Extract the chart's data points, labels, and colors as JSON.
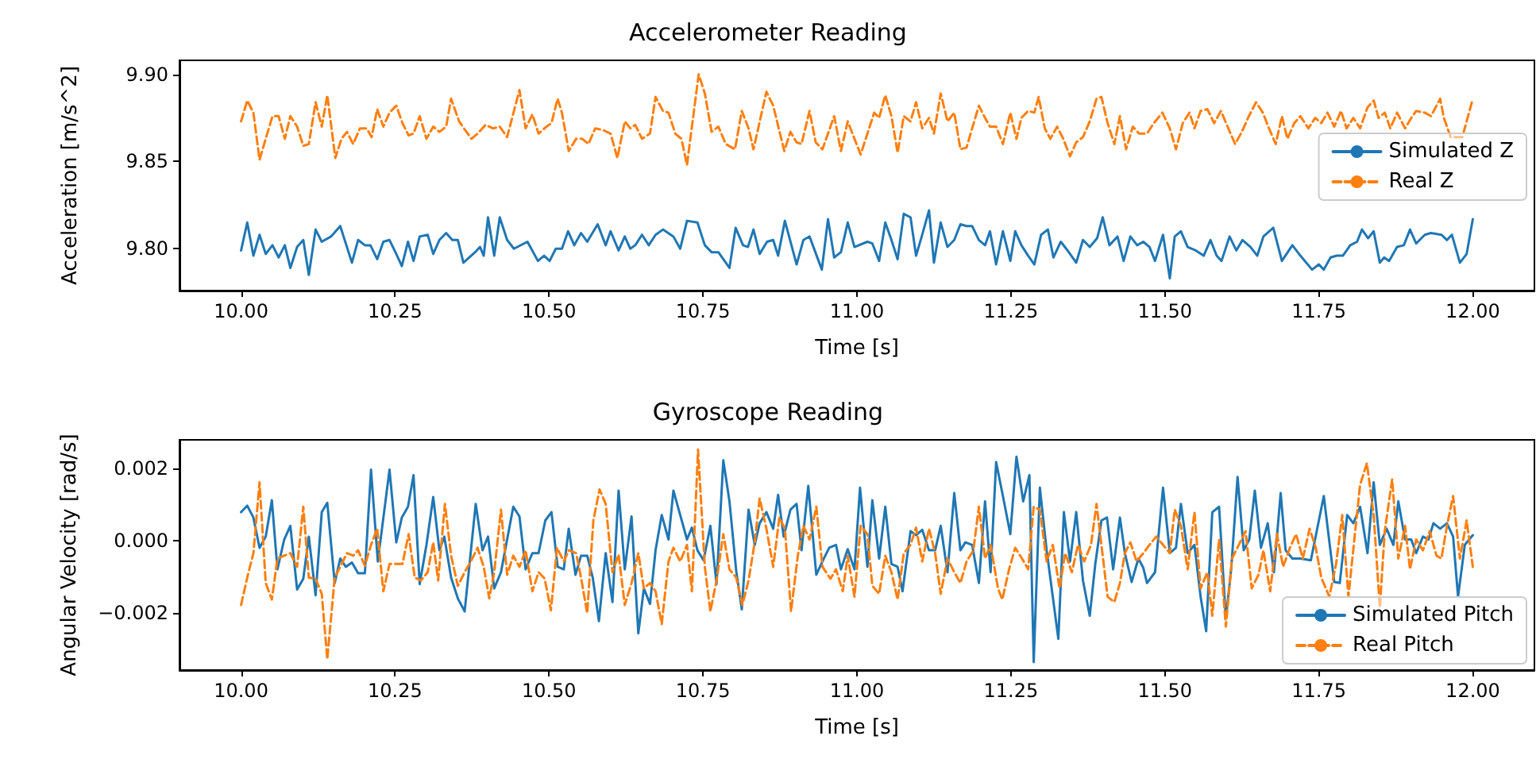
{
  "chart_data": [
    {
      "type": "line",
      "title": "Accelerometer Reading",
      "xlabel": "Time [s]",
      "ylabel": "Acceleration [m/s^2]",
      "legend": "right",
      "xlim": [
        9.9,
        12.1
      ],
      "xticks": [
        {
          "value": 10,
          "label": "10.00"
        },
        {
          "value": 10.25,
          "label": "10.25"
        },
        {
          "value": 10.5,
          "label": "10.50"
        },
        {
          "value": 10.75,
          "label": "10.75"
        },
        {
          "value": 11,
          "label": "11.00"
        },
        {
          "value": 11.25,
          "label": "11.25"
        },
        {
          "value": 11.5,
          "label": "11.50"
        },
        {
          "value": 11.75,
          "label": "11.75"
        },
        {
          "value": 12,
          "label": "12.00"
        }
      ],
      "ylim": [
        9.776,
        9.908
      ],
      "yticks": [
        {
          "value": 9.8,
          "label": "9.80"
        },
        {
          "value": 9.85,
          "label": "9.85"
        },
        {
          "value": 9.9,
          "label": "9.90"
        }
      ],
      "series": [
        {
          "name": "Simulated Z",
          "color": "#1f77b4",
          "line_style": "solid",
          "x": [
            10.0,
            10.01,
            10.02,
            10.03,
            10.04,
            10.051,
            10.061,
            10.071,
            10.08,
            10.091,
            10.101,
            10.11,
            10.121,
            10.131,
            10.146,
            10.161,
            10.18,
            10.19,
            10.201,
            10.21,
            10.221,
            10.231,
            10.241,
            10.252,
            10.261,
            10.271,
            10.28,
            10.29,
            10.303,
            10.312,
            10.322,
            10.333,
            10.343,
            10.352,
            10.361,
            10.38,
            10.388,
            10.394,
            10.401,
            10.411,
            10.42,
            10.432,
            10.443,
            10.465,
            10.482,
            10.492,
            10.501,
            10.511,
            10.521,
            10.531,
            10.541,
            10.552,
            10.562,
            10.579,
            10.592,
            10.6,
            10.613,
            10.623,
            10.632,
            10.64,
            10.651,
            10.662,
            10.673,
            10.685,
            10.702,
            10.713,
            10.724,
            10.741,
            10.753,
            10.764,
            10.775,
            10.793,
            10.803,
            10.815,
            10.823,
            10.832,
            10.842,
            10.854,
            10.864,
            10.872,
            10.883,
            10.902,
            10.913,
            10.923,
            10.943,
            10.953,
            10.963,
            10.974,
            10.985,
            10.996,
            11.017,
            11.025,
            11.036,
            11.046,
            11.056,
            11.066,
            11.076,
            11.087,
            11.096,
            11.106,
            11.117,
            11.125,
            11.136,
            11.147,
            11.158,
            11.168,
            11.178,
            11.187,
            11.198,
            11.208,
            11.216,
            11.226,
            11.237,
            11.249,
            11.257,
            11.267,
            11.278,
            11.288,
            11.299,
            11.31,
            11.319,
            11.331,
            11.342,
            11.356,
            11.367,
            11.378,
            11.39,
            11.399,
            11.41,
            11.423,
            11.433,
            11.444,
            11.455,
            11.465,
            11.475,
            11.484,
            11.497,
            11.508,
            11.516,
            11.526,
            11.537,
            11.55,
            11.563,
            11.574,
            11.584,
            11.592,
            11.605,
            11.616,
            11.626,
            11.639,
            11.65,
            11.66,
            11.676,
            11.69,
            11.707,
            11.72,
            11.739,
            11.75,
            11.758,
            11.769,
            11.779,
            11.789,
            11.801,
            11.812,
            11.82,
            11.83,
            11.839,
            11.849,
            11.856,
            11.864,
            11.877,
            11.888,
            11.898,
            11.908,
            11.922,
            11.932,
            11.949,
            11.958,
            11.966,
            11.979,
            11.99,
            12.0
          ],
          "values": [
            9.799,
            9.815,
            9.796,
            9.808,
            9.797,
            9.802,
            9.795,
            9.802,
            9.789,
            9.801,
            9.805,
            9.785,
            9.811,
            9.804,
            9.807,
            9.813,
            9.792,
            9.805,
            9.802,
            9.802,
            9.794,
            9.804,
            9.805,
            9.797,
            9.79,
            9.804,
            9.793,
            9.807,
            9.808,
            9.797,
            9.805,
            9.809,
            9.805,
            9.805,
            9.792,
            9.798,
            9.801,
            9.796,
            9.818,
            9.796,
            9.818,
            9.805,
            9.8,
            9.804,
            9.793,
            9.796,
            9.793,
            9.8,
            9.8,
            9.81,
            9.802,
            9.809,
            9.804,
            9.814,
            9.802,
            9.81,
            9.799,
            9.807,
            9.8,
            9.802,
            9.808,
            9.802,
            9.808,
            9.811,
            9.807,
            9.8,
            9.816,
            9.815,
            9.802,
            9.798,
            9.798,
            9.789,
            9.812,
            9.802,
            9.801,
            9.811,
            9.797,
            9.804,
            9.805,
            9.796,
            9.816,
            9.791,
            9.805,
            9.807,
            9.788,
            9.817,
            9.795,
            9.798,
            9.815,
            9.801,
            9.804,
            9.803,
            9.793,
            9.815,
            9.805,
            9.794,
            9.82,
            9.818,
            9.796,
            9.808,
            9.822,
            9.792,
            9.815,
            9.801,
            9.805,
            9.814,
            9.813,
            9.813,
            9.805,
            9.802,
            9.81,
            9.791,
            9.81,
            9.793,
            9.81,
            9.802,
            9.796,
            9.791,
            9.808,
            9.811,
            9.795,
            9.804,
            9.799,
            9.792,
            9.805,
            9.801,
            9.806,
            9.818,
            9.802,
            9.807,
            9.793,
            9.807,
            9.802,
            9.804,
            9.801,
            9.793,
            9.808,
            9.783,
            9.807,
            9.81,
            9.801,
            9.799,
            9.796,
            9.805,
            9.796,
            9.793,
            9.807,
            9.799,
            9.805,
            9.801,
            9.796,
            9.807,
            9.812,
            9.793,
            9.802,
            9.796,
            9.788,
            9.791,
            9.788,
            9.795,
            9.796,
            9.796,
            9.802,
            9.804,
            9.811,
            9.806,
            9.81,
            9.792,
            9.795,
            9.793,
            9.801,
            9.802,
            9.811,
            9.803,
            9.808,
            9.809,
            9.808,
            9.805,
            9.808,
            9.792,
            9.797,
            9.817
          ]
        },
        {
          "name": "Real Z",
          "color": "#ff7f0e",
          "line_style": "dashed",
          "x": [
            10.0,
            10.01,
            10.02,
            10.03,
            10.04,
            10.051,
            10.061,
            10.071,
            10.08,
            10.091,
            10.101,
            10.11,
            10.121,
            10.131,
            10.14,
            10.153,
            10.163,
            10.172,
            10.182,
            10.193,
            10.204,
            10.212,
            10.221,
            10.231,
            10.241,
            10.252,
            10.262,
            10.272,
            10.28,
            10.29,
            10.301,
            10.312,
            10.322,
            10.333,
            10.341,
            10.354,
            10.374,
            10.384,
            10.397,
            10.409,
            10.42,
            10.432,
            10.452,
            10.462,
            10.473,
            10.483,
            10.496,
            10.504,
            10.514,
            10.521,
            10.532,
            10.544,
            10.554,
            10.564,
            10.575,
            10.588,
            10.6,
            10.611,
            10.623,
            10.632,
            10.64,
            10.651,
            10.664,
            10.673,
            10.685,
            10.694,
            10.705,
            10.715,
            10.724,
            10.743,
            10.753,
            10.764,
            10.775,
            10.787,
            10.802,
            10.813,
            10.824,
            10.832,
            10.853,
            10.864,
            10.882,
            10.892,
            10.902,
            10.91,
            10.923,
            10.933,
            10.944,
            10.957,
            10.963,
            10.974,
            10.985,
            10.996,
            11.006,
            11.017,
            11.028,
            11.036,
            11.046,
            11.056,
            11.066,
            11.076,
            11.087,
            11.096,
            11.106,
            11.117,
            11.125,
            11.136,
            11.147,
            11.158,
            11.168,
            11.178,
            11.187,
            11.198,
            11.208,
            11.216,
            11.226,
            11.237,
            11.249,
            11.259,
            11.267,
            11.278,
            11.288,
            11.295,
            11.305,
            11.314,
            11.325,
            11.335,
            11.346,
            11.356,
            11.367,
            11.378,
            11.389,
            11.397,
            11.407,
            11.418,
            11.427,
            11.437,
            11.448,
            11.458,
            11.471,
            11.482,
            11.496,
            11.508,
            11.518,
            11.529,
            11.54,
            11.548,
            11.558,
            11.569,
            11.58,
            11.591,
            11.603,
            11.614,
            11.625,
            11.635,
            11.648,
            11.659,
            11.669,
            11.68,
            11.69,
            11.699,
            11.71,
            11.72,
            11.733,
            11.744,
            11.754,
            11.764,
            11.775,
            11.786,
            11.795,
            11.806,
            11.817,
            11.829,
            11.839,
            11.847,
            11.857,
            11.866,
            11.877,
            11.89,
            11.9,
            11.908,
            11.922,
            11.932,
            11.947,
            11.953,
            11.964,
            11.983,
            12.0
          ],
          "values": [
            9.873,
            9.885,
            9.878,
            9.851,
            9.863,
            9.876,
            9.876,
            9.863,
            9.876,
            9.87,
            9.859,
            9.86,
            9.884,
            9.87,
            9.888,
            9.852,
            9.863,
            9.867,
            9.86,
            9.869,
            9.869,
            9.864,
            9.88,
            9.87,
            9.878,
            9.882,
            9.872,
            9.865,
            9.866,
            9.876,
            9.863,
            9.87,
            9.867,
            9.87,
            9.886,
            9.873,
            9.863,
            9.866,
            9.871,
            9.869,
            9.87,
            9.864,
            9.891,
            9.869,
            9.877,
            9.866,
            9.87,
            9.872,
            9.886,
            9.878,
            9.856,
            9.863,
            9.863,
            9.86,
            9.869,
            9.868,
            9.866,
            9.852,
            9.873,
            9.869,
            9.871,
            9.863,
            9.866,
            9.887,
            9.879,
            9.878,
            9.866,
            9.863,
            9.848,
            9.9,
            9.889,
            9.867,
            9.87,
            9.86,
            9.857,
            9.879,
            9.869,
            9.857,
            9.89,
            9.882,
            9.856,
            9.867,
            9.861,
            9.86,
            9.879,
            9.861,
            9.857,
            9.87,
            9.876,
            9.856,
            9.873,
            9.863,
            9.854,
            9.866,
            9.878,
            9.875,
            9.888,
            9.876,
            9.855,
            9.876,
            9.873,
            9.884,
            9.869,
            9.875,
            9.866,
            9.889,
            9.873,
            9.878,
            9.857,
            9.858,
            9.869,
            9.882,
            9.875,
            9.87,
            9.87,
            9.86,
            9.878,
            9.863,
            9.875,
            9.879,
            9.878,
            9.887,
            9.869,
            9.863,
            9.87,
            9.863,
            9.853,
            9.861,
            9.864,
            9.873,
            9.886,
            9.887,
            9.872,
            9.86,
            9.876,
            9.857,
            9.87,
            9.866,
            9.866,
            9.872,
            9.878,
            9.869,
            9.857,
            9.872,
            9.878,
            9.869,
            9.879,
            9.88,
            9.872,
            9.879,
            9.869,
            9.86,
            9.867,
            9.875,
            9.884,
            9.878,
            9.869,
            9.86,
            9.876,
            9.863,
            9.872,
            9.876,
            9.869,
            9.875,
            9.872,
            9.878,
            9.87,
            9.879,
            9.869,
            9.875,
            9.869,
            9.881,
            9.885,
            9.875,
            9.878,
            9.869,
            9.878,
            9.869,
            9.875,
            9.879,
            9.878,
            9.876,
            9.886,
            9.875,
            9.864,
            9.864,
            9.886
          ]
        }
      ]
    },
    {
      "type": "line",
      "title": "Gyroscope Reading",
      "xlabel": "Time [s]",
      "ylabel": "Angular Velocity [rad/s]",
      "legend": "lower right",
      "xlim": [
        9.9,
        12.1
      ],
      "xticks": [
        {
          "value": 10,
          "label": "10.00"
        },
        {
          "value": 10.25,
          "label": "10.25"
        },
        {
          "value": 10.5,
          "label": "10.50"
        },
        {
          "value": 10.75,
          "label": "10.75"
        },
        {
          "value": 11,
          "label": "11.00"
        },
        {
          "value": 11.25,
          "label": "11.25"
        },
        {
          "value": 11.5,
          "label": "11.50"
        },
        {
          "value": 11.75,
          "label": "11.75"
        },
        {
          "value": 12,
          "label": "12.00"
        }
      ],
      "ylim": [
        -0.0036,
        0.0028
      ],
      "yticks": [
        {
          "value": -0.002,
          "label": "−0.002"
        },
        {
          "value": 0,
          "label": "0.000"
        },
        {
          "value": 0.002,
          "label": "0.002"
        }
      ],
      "series": [
        {
          "name": "Simulated Pitch",
          "color": "#1f77b4",
          "line_style": "solid",
          "x": [
            10.0,
            10.01,
            10.02,
            10.03,
            10.04,
            10.05,
            10.059,
            10.07,
            10.08,
            10.091,
            10.101,
            10.11,
            10.121,
            10.131,
            10.14,
            10.152,
            10.161,
            10.17,
            10.18,
            10.19,
            10.201,
            10.211,
            10.222,
            10.241,
            10.252,
            10.261,
            10.271,
            10.28,
            10.29,
            10.301,
            10.312,
            10.322,
            10.33,
            10.341,
            10.352,
            10.363,
            10.381,
            10.392,
            10.401,
            10.411,
            10.422,
            10.432,
            10.442,
            10.452,
            10.462,
            10.473,
            10.483,
            10.494,
            10.504,
            10.514,
            10.524,
            10.532,
            10.543,
            10.552,
            10.562,
            10.571,
            10.581,
            10.592,
            10.603,
            10.613,
            10.623,
            10.634,
            10.645,
            10.654,
            10.664,
            10.673,
            10.683,
            10.694,
            10.702,
            10.713,
            10.724,
            10.732,
            10.741,
            10.751,
            10.762,
            10.772,
            10.783,
            10.793,
            10.804,
            10.813,
            10.824,
            10.834,
            10.842,
            10.853,
            10.864,
            10.872,
            10.881,
            10.892,
            10.902,
            10.91,
            10.921,
            10.934,
            10.944,
            10.955,
            10.966,
            10.974,
            10.985,
            10.996,
            11.005,
            11.017,
            11.025,
            11.036,
            11.046,
            11.056,
            11.066,
            11.074,
            11.087,
            11.096,
            11.106,
            11.117,
            11.127,
            11.136,
            11.147,
            11.158,
            11.168,
            11.176,
            11.187,
            11.198,
            11.208,
            11.217,
            11.226,
            11.237,
            11.249,
            11.259,
            11.27,
            11.28,
            11.287,
            11.297,
            11.308,
            11.327,
            11.336,
            11.346,
            11.356,
            11.367,
            11.378,
            11.387,
            11.397,
            11.406,
            11.416,
            11.427,
            11.435,
            11.446,
            11.457,
            11.465,
            11.471,
            11.484,
            11.497,
            11.508,
            11.518,
            11.526,
            11.537,
            11.548,
            11.558,
            11.567,
            11.577,
            11.588,
            11.599,
            11.608,
            11.618,
            11.628,
            11.637,
            11.646,
            11.656,
            11.667,
            11.677,
            11.688,
            11.696,
            11.707,
            11.72,
            11.737,
            11.758,
            11.775,
            11.784,
            11.796,
            11.806,
            11.817,
            11.829,
            11.839,
            11.849,
            11.86,
            11.871,
            11.879,
            11.89,
            11.9,
            11.908,
            11.919,
            11.928,
            11.936,
            11.947,
            11.958,
            11.968,
            11.976,
            11.987,
            12.0
          ],
          "values": [
            0.00079,
            0.00097,
            0.00064,
            -0.0002,
            0.00011,
            0.00112,
            -0.0008,
            3e-05,
            0.00041,
            -0.00136,
            -0.00106,
            0.00011,
            -0.00152,
            0.00079,
            0.00105,
            -0.00118,
            -0.0005,
            -0.00073,
            -0.00061,
            -0.00091,
            -0.00091,
            0.00197,
            -0.00058,
            0.00197,
            -5e-05,
            0.00064,
            0.00094,
            0.00182,
            -0.00121,
            -0.00012,
            0.00121,
            -0.00027,
            0.00011,
            -0.00103,
            -0.00161,
            -0.00197,
            0.00102,
            -0.00027,
            0.00011,
            -0.00133,
            -0.00088,
            3e-05,
            0.00094,
            0.00067,
            -0.0008,
            -0.00035,
            -0.00035,
            0.00056,
            0.00079,
            -0.00073,
            -0.0008,
            0.00033,
            -0.00095,
            -0.00042,
            -0.00042,
            -0.00103,
            -0.00224,
            -0.00035,
            -0.00171,
            0.00139,
            -0.0008,
            0.00067,
            -0.00258,
            -0.00133,
            -0.00176,
            -0.00027,
            0.00071,
            3e-05,
            0.00139,
            0.00071,
            3e-05,
            0.00036,
            -0.00027,
            -0.00055,
            0.00041,
            -0.00121,
            0.00223,
            0.00109,
            -0.00085,
            -0.00191,
            0.00086,
            -0.00012,
            0.00048,
            0.00079,
            0.00033,
            0.00127,
            0.00011,
            0.00086,
            0.00102,
            -0.00027,
            0.00152,
            -0.00095,
            -0.00058,
            -0.0002,
            -0.00012,
            -0.0008,
            -0.00024,
            -0.0008,
            0.00147,
            -0.00073,
            0.00112,
            -0.0005,
            0.00094,
            -0.00065,
            -0.00073,
            -0.00141,
            0.00026,
            0.00015,
            0.0003,
            -0.00027,
            -0.00027,
            0.00041,
            -0.00088,
            0.00132,
            -0.00027,
            -5e-05,
            -0.00012,
            -0.00118,
            0.00109,
            -0.00088,
            0.00218,
            0.00124,
            0.00018,
            0.00233,
            0.00109,
            0.00182,
            -0.00338,
            0.00147,
            -0.00027,
            -0.00273,
            0.00079,
            -0.00058,
            0.00079,
            -0.00111,
            -0.00209,
            -0.00065,
            0.00056,
            0.00064,
            -0.0008,
            0.00064,
            -0.00035,
            -0.00115,
            -0.0005,
            -0.00076,
            -0.00118,
            -0.00088,
            0.00147,
            -0.00035,
            -0.0002,
            0.00102,
            -0.00035,
            -0.00012,
            -0.00156,
            -0.00252,
            0.00079,
            0.00094,
            -0.00217,
            -0.00073,
            0.00177,
            -0.00027,
            3e-05,
            0.00139,
            -0.0002,
            0.00048,
            -0.00088,
            0.00132,
            -0.00027,
            -0.0005,
            -0.0005,
            -0.00055,
            0.00124,
            -0.00115,
            -0.00118,
            0.00071,
            0.00048,
            0.00094,
            -0.00035,
            0.00162,
            -0.00012,
            0.00033,
            -0.00012,
            0.00109,
            3e-05,
            3e-05,
            -0.00035,
            0.00011,
            3e-05,
            0.00048,
            0.00033,
            0.00048,
            0.00011,
            -0.00156,
            -0.00012,
            0.00015
          ]
        },
        {
          "name": "Real Pitch",
          "color": "#ff7f0e",
          "line_style": "dashed",
          "x": [
            10.0,
            10.01,
            10.02,
            10.03,
            10.04,
            10.05,
            10.059,
            10.07,
            10.08,
            10.091,
            10.101,
            10.11,
            10.121,
            10.131,
            10.14,
            10.152,
            10.161,
            10.172,
            10.182,
            10.19,
            10.201,
            10.211,
            10.221,
            10.231,
            10.241,
            10.252,
            10.262,
            10.272,
            10.282,
            10.292,
            10.303,
            10.312,
            10.32,
            10.331,
            10.341,
            10.352,
            10.363,
            10.373,
            10.384,
            10.394,
            10.403,
            10.411,
            10.422,
            10.432,
            10.442,
            10.452,
            10.462,
            10.473,
            10.483,
            10.493,
            10.503,
            10.513,
            10.524,
            10.532,
            10.544,
            10.552,
            10.562,
            10.572,
            10.582,
            10.592,
            10.603,
            10.613,
            10.623,
            10.634,
            10.645,
            10.654,
            10.664,
            10.673,
            10.683,
            10.694,
            10.702,
            10.713,
            10.724,
            10.732,
            10.742,
            10.753,
            10.762,
            10.772,
            10.783,
            10.793,
            10.804,
            10.814,
            10.824,
            10.834,
            10.842,
            10.853,
            10.864,
            10.874,
            10.883,
            10.893,
            10.904,
            10.913,
            10.923,
            10.934,
            10.944,
            10.957,
            10.966,
            10.977,
            10.985,
            10.996,
            11.006,
            11.017,
            11.025,
            11.036,
            11.046,
            11.056,
            11.066,
            11.076,
            11.087,
            11.096,
            11.106,
            11.117,
            11.127,
            11.136,
            11.147,
            11.158,
            11.168,
            11.178,
            11.189,
            11.198,
            11.208,
            11.217,
            11.229,
            11.236,
            11.247,
            11.257,
            11.268,
            11.278,
            11.287,
            11.297,
            11.308,
            11.318,
            11.329,
            11.338,
            11.349,
            11.359,
            11.369,
            11.38,
            11.389,
            11.399,
            11.407,
            11.418,
            11.427,
            11.435,
            11.444,
            11.454,
            11.465,
            11.475,
            11.486,
            11.497,
            11.508,
            11.516,
            11.526,
            11.537,
            11.548,
            11.558,
            11.569,
            11.577,
            11.588,
            11.599,
            11.609,
            11.62,
            11.631,
            11.641,
            11.652,
            11.66,
            11.671,
            11.682,
            11.692,
            11.703,
            11.713,
            11.724,
            11.735,
            11.745,
            11.754,
            11.767,
            11.778,
            11.788,
            11.798,
            11.809,
            11.817,
            11.828,
            11.839,
            11.849,
            11.857,
            11.869,
            11.879,
            11.89,
            11.898,
            11.908,
            11.919,
            11.93,
            11.941,
            11.949,
            11.958,
            11.968,
            11.979,
            11.99,
            12.0
          ],
          "values": [
            -0.00179,
            -0.00103,
            -0.00035,
            0.00162,
            -0.00118,
            -0.00164,
            -0.0005,
            -0.00042,
            -0.00035,
            -0.00073,
            0.00094,
            -0.00103,
            -0.00106,
            -0.00148,
            -0.0033,
            -0.00103,
            -0.00073,
            -0.00035,
            -0.00042,
            -0.00027,
            -0.0007,
            -0.00012,
            0.00033,
            -0.00141,
            -0.00065,
            -0.00065,
            -0.00065,
            0.00018,
            -0.00103,
            -0.00111,
            -0.00088,
            -5e-05,
            -0.00111,
            0.00102,
            -0.00042,
            -0.00126,
            -0.00088,
            -0.00058,
            -0.0002,
            -0.00073,
            -0.00161,
            -0.00088,
            0.00086,
            -0.00095,
            -0.00042,
            -0.00073,
            -0.00027,
            -0.00141,
            -0.00088,
            -0.00106,
            -0.00194,
            -0.0002,
            -0.00058,
            -0.00027,
            -0.00035,
            -0.00103,
            -0.00202,
            0.00056,
            0.00142,
            0.00102,
            -0.00088,
            -0.00039,
            -0.00179,
            -0.00118,
            -0.00035,
            -0.00133,
            -0.00118,
            -0.00141,
            -0.00232,
            -0.00058,
            -0.0002,
            -0.00058,
            -0.00012,
            -0.00141,
            0.00253,
            -0.00073,
            -0.00197,
            -0.00111,
            0.00018,
            -0.0008,
            -0.00103,
            -0.00179,
            -0.00111,
            -5e-05,
            0.00117,
            0.00033,
            -0.00073,
            0.00064,
            0.00033,
            -0.00197,
            -0.00042,
            0.00041,
            3e-05,
            0.00094,
            -0.00073,
            -0.00106,
            -0.0008,
            -0.00141,
            -0.00042,
            -0.00156,
            0.00041,
            0.00018,
            -0.00126,
            -0.00148,
            -0.00042,
            -0.00088,
            -0.00164,
            -0.00035,
            -0.00012,
            0.00036,
            -0.00058,
            0.00033,
            -0.00035,
            -0.00148,
            -0.0005,
            -0.00088,
            -0.00118,
            -0.00058,
            -0.00027,
            0.00094,
            -0.0005,
            -0.00012,
            -0.00133,
            -0.00164,
            -0.0008,
            -0.0002,
            -0.0005,
            -0.0008,
            0.00094,
            0.00086,
            -0.00058,
            -0.00012,
            -0.00133,
            -0.00035,
            -0.00088,
            -0.00012,
            -0.00058,
            -0.00012,
            0.00102,
            -0.00042,
            -0.00156,
            -0.00171,
            -0.00118,
            -0.00035,
            -5e-05,
            -0.00058,
            -0.00035,
            -0.00012,
            0.00011,
            -0.00012,
            -0.00035,
            0.00086,
            0.00041,
            -0.0008,
            0.00079,
            -0.00133,
            -0.00088,
            -0.00209,
            3e-05,
            -0.00239,
            -0.0005,
            -0.00012,
            0.00026,
            -0.00133,
            -0.00095,
            -0.00027,
            -0.00141,
            0.00018,
            -0.00073,
            -0.0002,
            0.00018,
            -0.0005,
            0.00033,
            -0.0002,
            -0.00103,
            -0.00156,
            -0.00065,
            0.00071,
            -0.00156,
            0.00026,
            0.00155,
            0.00215,
            0.00071,
            -0.00186,
            0.00026,
            0.0017,
            -0.0005,
            0.00041,
            -0.0008,
            3e-05,
            -0.00027,
            0.00026,
            -0.00042,
            -0.0005,
            0.00041,
            0.00124,
            -0.0005,
            0.00056,
            -0.00073
          ]
        }
      ]
    }
  ]
}
